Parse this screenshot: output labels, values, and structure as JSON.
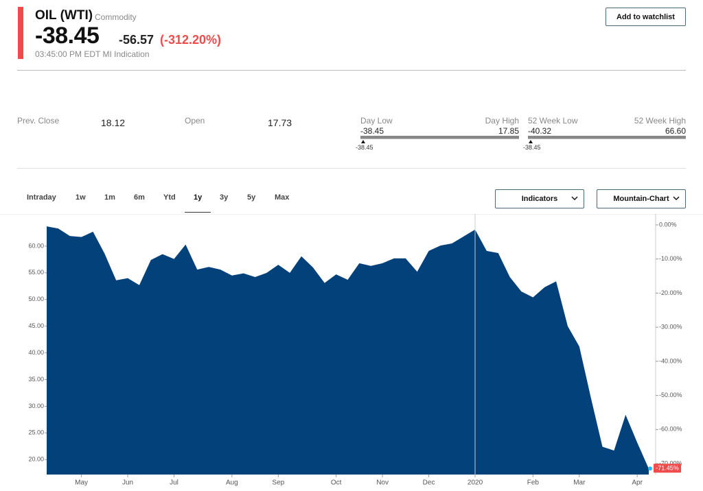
{
  "header": {
    "title": "OIL (WTI)",
    "kind": "Commodity",
    "price": "-38.45",
    "change": "-56.57",
    "change_percent": "(-312.20%)",
    "time": "03:45:00 PM EDT MI Indication",
    "button": "Add to watchlist"
  },
  "stats": {
    "prev_close": {
      "label": "Prev. Close",
      "value": "18.12"
    },
    "open": {
      "label": "Open",
      "value": "17.73"
    },
    "day_range": {
      "low_label": "Day Low",
      "high_label": "Day High",
      "low": "-38.45",
      "high": "17.85",
      "marker": "-38.45"
    },
    "week52_range": {
      "low_label": "52 Week Low",
      "high_label": "52 Week High",
      "low": "-40.32",
      "high": "66.60",
      "marker": "-38.45"
    }
  },
  "tabs": [
    "Intraday",
    "1w",
    "1m",
    "6m",
    "Ytd",
    "1y",
    "3y",
    "5y",
    "Max"
  ],
  "active_tab": "1y",
  "dropdowns": [
    "Indicators",
    "Mountain-Chart"
  ],
  "chart_data": {
    "type": "area",
    "color": "#02417a",
    "categories": [
      null,
      null,
      null,
      "May",
      null,
      null,
      null,
      "Jun",
      null,
      null,
      null,
      "Jul",
      null,
      null,
      null,
      null,
      "Aug",
      null,
      null,
      null,
      "Sep",
      null,
      null,
      null,
      null,
      "Oct",
      null,
      null,
      null,
      "Nov",
      null,
      null,
      null,
      "Dec",
      null,
      null,
      null,
      "2020",
      null,
      null,
      null,
      null,
      "Feb",
      null,
      null,
      null,
      "Mar",
      null,
      null,
      null,
      null,
      "Apr",
      null
    ],
    "values": [
      63.7,
      63.3,
      61.9,
      61.7,
      62.7,
      58.6,
      53.6,
      54.0,
      52.7,
      57.4,
      58.5,
      57.6,
      60.3,
      55.6,
      56.1,
      55.6,
      54.5,
      54.9,
      54.2,
      55.0,
      56.5,
      55.0,
      58.1,
      56.0,
      53.1,
      54.7,
      53.7,
      56.8,
      56.3,
      56.8,
      57.7,
      57.7,
      55.2,
      59.1,
      60.1,
      60.5,
      61.8,
      63.1,
      59.1,
      58.7,
      54.2,
      51.5,
      50.4,
      52.3,
      53.4,
      45.0,
      41.2,
      31.6,
      22.4,
      21.7,
      28.4,
      23.2,
      18.3
    ],
    "ylim": [
      17.2,
      65.0
    ],
    "yticks": [
      {
        "value": 20,
        "label": "20.00"
      },
      {
        "value": 25,
        "label": "25.00"
      },
      {
        "value": 30,
        "label": "30.00"
      },
      {
        "value": 35,
        "label": "35.00"
      },
      {
        "value": 40,
        "label": "40.00"
      },
      {
        "value": 45,
        "label": "45.00"
      },
      {
        "value": 50,
        "label": "50.00"
      },
      {
        "value": 55,
        "label": "55.00"
      },
      {
        "value": 60,
        "label": "60.00"
      }
    ],
    "y2lim": [
      -73.2,
      1.6
    ],
    "y2ticks": [
      {
        "value": 0,
        "label": "0.00%"
      },
      {
        "value": -10,
        "label": "-10.00%"
      },
      {
        "value": -20,
        "label": "-20.00%"
      },
      {
        "value": -30,
        "label": "-30.00%"
      },
      {
        "value": -40,
        "label": "-40.00%"
      },
      {
        "value": -50,
        "label": "-50.00%"
      },
      {
        "value": -60,
        "label": "-60.00%"
      },
      {
        "value": -70,
        "label": "-70.00%"
      }
    ],
    "last_change": -71.45,
    "last_change_label": "-71.45%"
  }
}
